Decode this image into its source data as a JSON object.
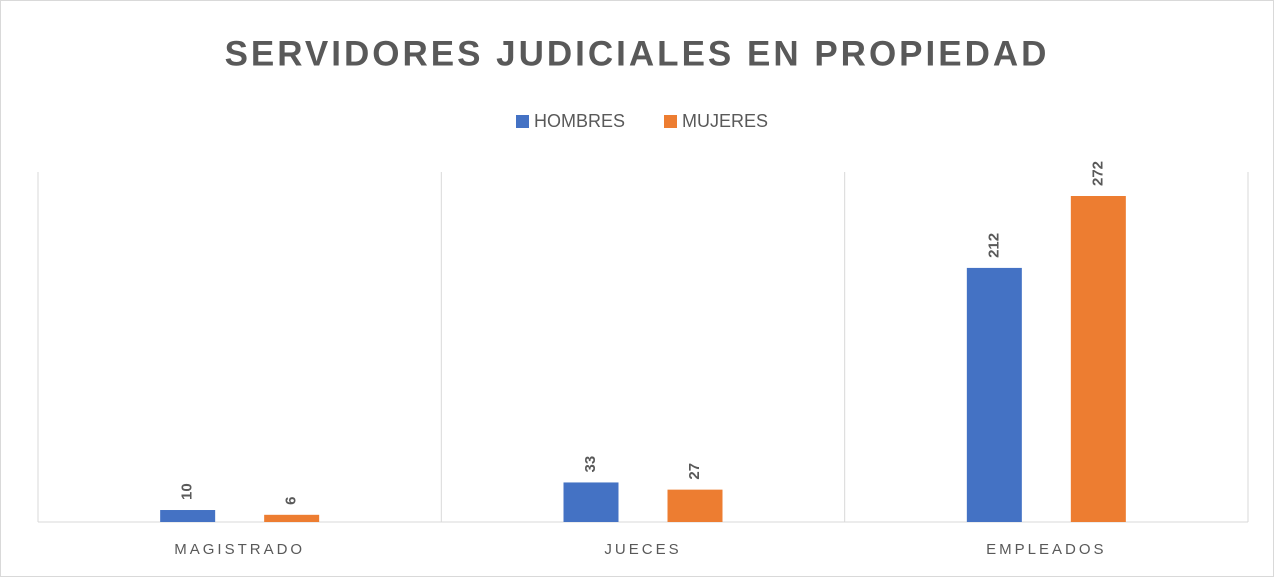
{
  "chart_data": {
    "type": "bar",
    "title": "SERVIDORES JUDICIALES EN PROPIEDAD",
    "categories": [
      "MAGISTRADO",
      "JUECES",
      "EMPLEADOS"
    ],
    "series": [
      {
        "name": "HOMBRES",
        "color": "#4472c4",
        "values": [
          10,
          33,
          212
        ]
      },
      {
        "name": "MUJERES",
        "color": "#ed7d31",
        "values": [
          6,
          27,
          272
        ]
      }
    ],
    "grid": false
  }
}
